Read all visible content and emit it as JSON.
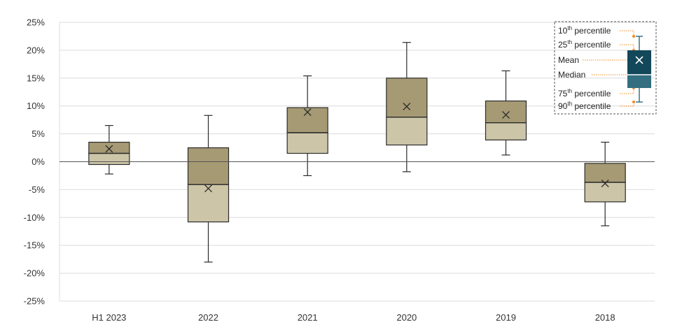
{
  "chart_data": {
    "type": "box",
    "title": "",
    "xlabel": "",
    "ylabel": "",
    "ylim": [
      -25,
      25
    ],
    "y_tick_step": 5,
    "y_tick_labels": [
      "25%",
      "20%",
      "15%",
      "10%",
      "5%",
      "0%",
      "-5%",
      "-10%",
      "-15%",
      "-20%",
      "-25%"
    ],
    "grid": true,
    "categories": [
      "H1 2023",
      "2022",
      "2021",
      "2020",
      "2019",
      "2018"
    ],
    "boxes": [
      {
        "p10": -2.2,
        "p25": -0.5,
        "median": 1.5,
        "p75": 3.5,
        "p90": 6.5,
        "mean": 2.3
      },
      {
        "p10": -18.0,
        "p25": -10.8,
        "median": -4.1,
        "p75": 2.5,
        "p90": 8.3,
        "mean": -4.8
      },
      {
        "p10": -2.5,
        "p25": 1.5,
        "median": 5.2,
        "p75": 9.7,
        "p90": 15.4,
        "mean": 8.9
      },
      {
        "p10": -1.8,
        "p25": 3.0,
        "median": 8.0,
        "p75": 15.0,
        "p90": 21.4,
        "mean": 9.9
      },
      {
        "p10": 1.2,
        "p25": 3.9,
        "median": 7.0,
        "p75": 10.9,
        "p90": 16.3,
        "mean": 8.4
      },
      {
        "p10": -11.5,
        "p25": -7.2,
        "median": -3.7,
        "p75": -0.3,
        "p90": 3.5,
        "mean": -3.9
      }
    ],
    "colors": {
      "upper_box": "#a59a74",
      "lower_box": "#cdc5a8",
      "box_edge": "#2b2b2b",
      "grid": "#dcdcdc",
      "legend_upper": "#12485a",
      "legend_lower": "#336f80",
      "legend_leader": "#f08a24"
    },
    "legend": {
      "placement": "top-right",
      "items": [
        {
          "base": "10",
          "sup": "th",
          "rest": " percentile"
        },
        {
          "base": "25",
          "sup": "th",
          "rest": " percentile"
        },
        {
          "base": "Mean",
          "sup": "",
          "rest": ""
        },
        {
          "base": "Median",
          "sup": "",
          "rest": ""
        },
        {
          "base": "75",
          "sup": "th",
          "rest": " percentile"
        },
        {
          "base": "90",
          "sup": "th",
          "rest": " percentile"
        }
      ]
    }
  }
}
